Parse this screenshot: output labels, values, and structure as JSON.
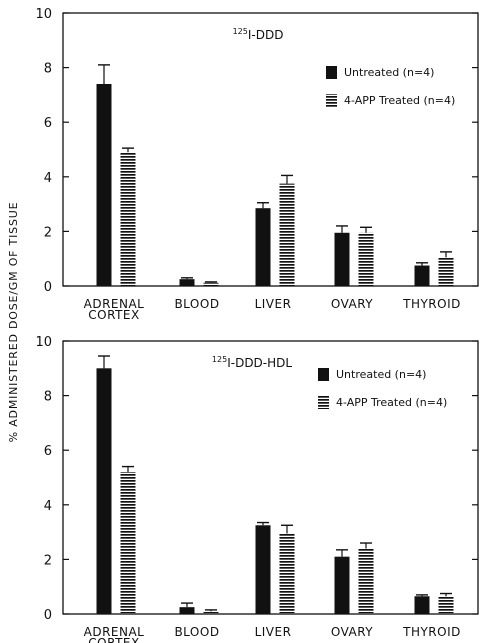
{
  "chart_data": [
    {
      "type": "bar",
      "title": "125I-DDD",
      "title_sup": "125",
      "title_rest": "I-DDD",
      "categories": [
        "ADRENAL CORTEX",
        "BLOOD",
        "LIVER",
        "OVARY",
        "THYROID"
      ],
      "category_lines": [
        [
          "ADRENAL",
          "CORTEX"
        ],
        [
          "BLOOD"
        ],
        [
          "LIVER"
        ],
        [
          "OVARY"
        ],
        [
          "THYROID"
        ]
      ],
      "series": [
        {
          "name": "Untreated (n=4)",
          "values": [
            7.4,
            0.25,
            2.85,
            1.95,
            0.75
          ],
          "errors": [
            0.7,
            0.05,
            0.2,
            0.25,
            0.1
          ],
          "fill": "solid"
        },
        {
          "name": "4-APP Treated (n=4)",
          "values": [
            4.9,
            0.12,
            3.75,
            1.95,
            1.05
          ],
          "errors": [
            0.15,
            0.03,
            0.3,
            0.2,
            0.2
          ],
          "fill": "hatched"
        }
      ],
      "ylim": [
        0,
        10
      ],
      "yticks": [
        0,
        2,
        4,
        6,
        8,
        10
      ],
      "legend_position": "upper-right"
    },
    {
      "type": "bar",
      "title": "125I-DDD-HDL",
      "title_sup": "125",
      "title_rest": "I-DDD-HDL",
      "categories": [
        "ADRENAL CORTEX",
        "BLOOD",
        "LIVER",
        "OVARY",
        "THYROID"
      ],
      "category_lines": [
        [
          "ADRENAL",
          "CORTEX"
        ],
        [
          "BLOOD"
        ],
        [
          "LIVER"
        ],
        [
          "OVARY"
        ],
        [
          "THYROID"
        ]
      ],
      "series": [
        {
          "name": "Untreated (n=4)",
          "values": [
            9.0,
            0.25,
            3.25,
            2.1,
            0.65
          ],
          "errors": [
            0.45,
            0.15,
            0.1,
            0.25,
            0.05
          ],
          "fill": "solid"
        },
        {
          "name": "4-APP Treated (n=4)",
          "values": [
            5.2,
            0.1,
            2.95,
            2.4,
            0.65
          ],
          "errors": [
            0.2,
            0.05,
            0.3,
            0.2,
            0.1
          ],
          "fill": "hatched"
        }
      ],
      "ylim": [
        0,
        10
      ],
      "yticks": [
        0,
        2,
        4,
        6,
        8,
        10
      ],
      "legend_position": "upper-right"
    }
  ],
  "shared_ylabel": "% ADMINISTERED DOSE/GM OF TISSUE",
  "colors": {
    "ink": "#111111",
    "background": "#ffffff"
  }
}
